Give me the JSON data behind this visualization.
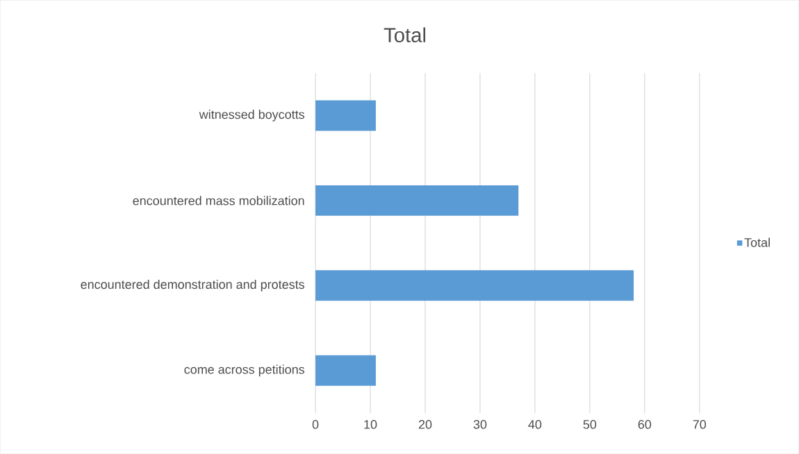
{
  "chart_data": {
    "type": "bar",
    "orientation": "horizontal",
    "title": "Total",
    "categories": [
      "witnessed boycotts",
      "encountered mass mobilization",
      "encountered demonstration and protests",
      "come across petitions"
    ],
    "series": [
      {
        "name": "Total",
        "color": "#5b9bd5",
        "values": [
          11,
          37,
          58,
          11
        ]
      }
    ],
    "xlim": [
      0,
      70
    ],
    "xticks": [
      0,
      10,
      20,
      30,
      40,
      50,
      60,
      70
    ],
    "grid": "x",
    "legend": "right"
  }
}
